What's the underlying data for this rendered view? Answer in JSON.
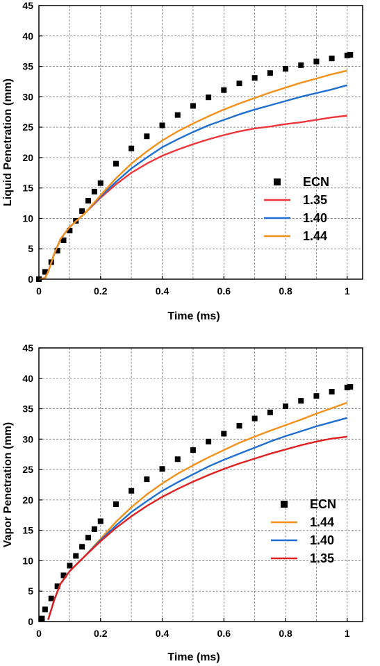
{
  "chart_data": [
    {
      "type": "line",
      "ylabel": "Liquid Penetration (mm)",
      "xlabel": "Time (ms)",
      "xlim": [
        0,
        1.05
      ],
      "ylim": [
        0,
        45
      ],
      "xticks": [
        "0",
        "0.2",
        "0.4",
        "0.6",
        "0.8",
        "1"
      ],
      "yticks": [
        "0",
        "5",
        "10",
        "15",
        "20",
        "25",
        "30",
        "35",
        "40",
        "45"
      ],
      "grid": true,
      "legend_position": "right",
      "series": [
        {
          "name": "ECN",
          "style": "marker-square",
          "color": "#000000",
          "x": [
            0.0,
            0.02,
            0.04,
            0.06,
            0.08,
            0.1,
            0.12,
            0.14,
            0.16,
            0.18,
            0.2,
            0.25,
            0.3,
            0.35,
            0.4,
            0.45,
            0.5,
            0.55,
            0.6,
            0.65,
            0.7,
            0.75,
            0.8,
            0.85,
            0.9,
            0.95,
            1.0,
            1.01
          ],
          "y": [
            0.0,
            1.2,
            2.8,
            4.7,
            6.4,
            8.0,
            9.6,
            11.2,
            12.9,
            14.4,
            15.8,
            19.0,
            21.5,
            23.5,
            25.3,
            27.0,
            28.5,
            29.9,
            31.1,
            32.2,
            33.1,
            33.9,
            34.6,
            35.2,
            35.8,
            36.3,
            36.8,
            36.9
          ]
        },
        {
          "name": "1.35",
          "style": "line",
          "color": "#f0353a",
          "x": [
            0.0,
            0.02,
            0.03,
            0.05,
            0.07,
            0.1,
            0.15,
            0.2,
            0.25,
            0.3,
            0.35,
            0.4,
            0.45,
            0.5,
            0.55,
            0.6,
            0.65,
            0.7,
            0.75,
            0.8,
            0.85,
            0.9,
            0.95,
            1.0
          ],
          "y": [
            0.0,
            0.2,
            1.2,
            4.2,
            6.6,
            8.6,
            10.9,
            13.4,
            15.6,
            17.5,
            19.0,
            20.3,
            21.3,
            22.2,
            23.0,
            23.7,
            24.3,
            24.8,
            25.1,
            25.5,
            25.8,
            26.2,
            26.6,
            26.9
          ]
        },
        {
          "name": "1.40",
          "style": "line",
          "color": "#1f6fd1",
          "x": [
            0.0,
            0.02,
            0.03,
            0.05,
            0.07,
            0.1,
            0.15,
            0.2,
            0.25,
            0.3,
            0.35,
            0.4,
            0.45,
            0.5,
            0.55,
            0.6,
            0.65,
            0.7,
            0.75,
            0.8,
            0.85,
            0.9,
            0.95,
            1.0
          ],
          "y": [
            0.0,
            0.2,
            1.2,
            4.2,
            6.6,
            8.6,
            10.9,
            13.6,
            16.0,
            18.2,
            20.0,
            21.7,
            23.0,
            24.2,
            25.3,
            26.2,
            27.1,
            27.9,
            28.6,
            29.3,
            30.0,
            30.6,
            31.2,
            31.9
          ]
        },
        {
          "name": "1.44",
          "style": "line",
          "color": "#f39019",
          "x": [
            0.0,
            0.02,
            0.03,
            0.05,
            0.07,
            0.1,
            0.15,
            0.2,
            0.25,
            0.3,
            0.35,
            0.4,
            0.45,
            0.5,
            0.55,
            0.6,
            0.65,
            0.7,
            0.75,
            0.8,
            0.85,
            0.9,
            0.95,
            1.0
          ],
          "y": [
            0.0,
            0.2,
            1.2,
            4.2,
            6.6,
            8.6,
            10.9,
            13.8,
            16.6,
            19.0,
            21.0,
            22.8,
            24.3,
            25.6,
            26.8,
            27.9,
            28.9,
            29.8,
            30.7,
            31.5,
            32.3,
            33.0,
            33.7,
            34.3
          ]
        }
      ]
    },
    {
      "type": "line",
      "ylabel": "Vapor Penetration (mm)",
      "xlabel": "Time (ms)",
      "xlim": [
        0,
        1.05
      ],
      "ylim": [
        0,
        45
      ],
      "xticks": [
        "0",
        "0.2",
        "0.4",
        "0.6",
        "0.8",
        "1"
      ],
      "yticks": [
        "0",
        "5",
        "10",
        "15",
        "20",
        "25",
        "30",
        "35",
        "40",
        "45"
      ],
      "grid": true,
      "legend_position": "bottom-right",
      "series": [
        {
          "name": "ECN",
          "style": "marker-square",
          "color": "#000000",
          "x": [
            0.01,
            0.02,
            0.04,
            0.06,
            0.08,
            0.1,
            0.12,
            0.14,
            0.16,
            0.18,
            0.2,
            0.25,
            0.3,
            0.35,
            0.4,
            0.45,
            0.5,
            0.55,
            0.6,
            0.65,
            0.7,
            0.75,
            0.8,
            0.85,
            0.9,
            0.95,
            1.0,
            1.01
          ],
          "y": [
            0.5,
            2.0,
            3.8,
            5.8,
            7.6,
            9.2,
            10.8,
            12.3,
            13.8,
            15.2,
            16.5,
            19.3,
            21.5,
            23.4,
            25.1,
            26.7,
            28.2,
            29.6,
            30.9,
            32.2,
            33.4,
            34.4,
            35.4,
            36.3,
            37.1,
            37.8,
            38.5,
            38.6
          ]
        },
        {
          "name": "1.44",
          "style": "line",
          "color": "#f39019",
          "x": [
            0.03,
            0.05,
            0.07,
            0.1,
            0.15,
            0.2,
            0.25,
            0.3,
            0.35,
            0.4,
            0.45,
            0.5,
            0.55,
            0.6,
            0.65,
            0.7,
            0.75,
            0.8,
            0.85,
            0.9,
            0.95,
            1.0
          ],
          "y": [
            0.3,
            3.6,
            6.2,
            8.3,
            10.8,
            13.6,
            16.4,
            18.8,
            20.9,
            22.7,
            24.3,
            25.7,
            27.0,
            28.2,
            29.4,
            30.4,
            31.4,
            32.3,
            33.2,
            34.2,
            35.1,
            36.0
          ]
        },
        {
          "name": "1.40",
          "style": "line",
          "color": "#1f6fd1",
          "x": [
            0.03,
            0.05,
            0.07,
            0.1,
            0.15,
            0.2,
            0.25,
            0.3,
            0.35,
            0.4,
            0.45,
            0.5,
            0.55,
            0.6,
            0.65,
            0.7,
            0.75,
            0.8,
            0.85,
            0.9,
            0.95,
            1.0
          ],
          "y": [
            0.3,
            3.6,
            6.2,
            8.3,
            10.8,
            13.4,
            15.8,
            18.0,
            19.8,
            21.5,
            22.9,
            24.2,
            25.5,
            26.6,
            27.6,
            28.6,
            29.6,
            30.5,
            31.3,
            32.1,
            32.8,
            33.5
          ]
        },
        {
          "name": "1.35",
          "style": "line",
          "color": "#e01f1f",
          "x": [
            0.03,
            0.05,
            0.07,
            0.1,
            0.15,
            0.2,
            0.25,
            0.3,
            0.35,
            0.4,
            0.45,
            0.5,
            0.55,
            0.6,
            0.65,
            0.7,
            0.75,
            0.8,
            0.85,
            0.9,
            0.95,
            1.0
          ],
          "y": [
            0.3,
            3.6,
            6.2,
            8.3,
            10.8,
            13.2,
            15.4,
            17.3,
            19.0,
            20.5,
            21.8,
            23.0,
            24.1,
            25.1,
            26.0,
            26.8,
            27.6,
            28.3,
            29.0,
            29.6,
            30.1,
            30.4
          ]
        }
      ]
    }
  ]
}
